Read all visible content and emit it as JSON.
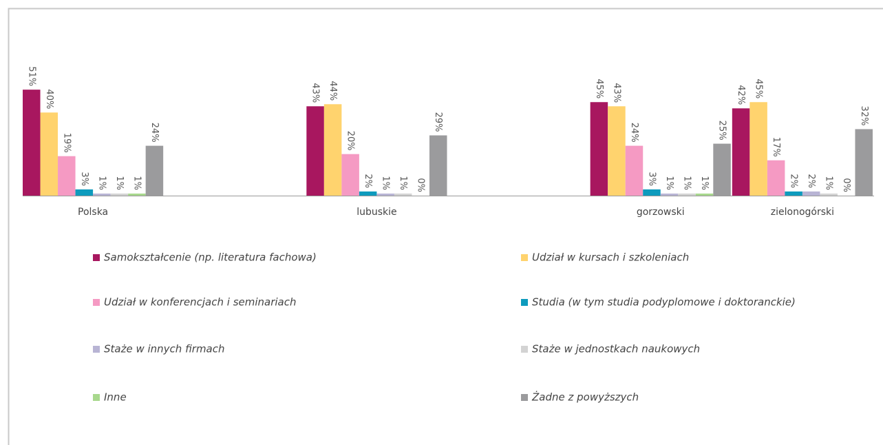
{
  "chart_data": {
    "type": "bar",
    "categories": [
      "Polska",
      null,
      "lubuskie",
      null,
      "gorzowski",
      "zielonogórski"
    ],
    "ylim": [
      0,
      60
    ],
    "series": [
      {
        "name": "Samokształcenie (np. literatura fachowa)",
        "color": "#a8175f",
        "values": [
          51,
          null,
          43,
          null,
          45,
          42
        ],
        "value_labels": [
          "51%",
          null,
          "43%",
          null,
          "45%",
          "42%"
        ]
      },
      {
        "name": "Udział w kursach i szkoleniach",
        "color": "#ffd36e",
        "values": [
          40,
          null,
          44,
          null,
          43,
          45
        ],
        "value_labels": [
          "40%",
          null,
          "44%",
          null,
          "43%",
          "45%"
        ]
      },
      {
        "name": "Udział w konferencjach i seminariach",
        "color": "#f59ac3",
        "values": [
          19,
          null,
          20,
          null,
          24,
          17
        ],
        "value_labels": [
          "19%",
          null,
          "20%",
          null,
          "24%",
          "17%"
        ]
      },
      {
        "name": "Studia (w tym studia podyplomowe i doktoranckie)",
        "color": "#0e9bbd",
        "values": [
          3,
          null,
          2,
          null,
          3,
          2
        ],
        "value_labels": [
          "3%",
          null,
          "2%",
          null,
          "3%",
          "2%"
        ]
      },
      {
        "name": "Staże w innych firmach",
        "color": "#b8b4d4",
        "values": [
          1,
          null,
          1,
          null,
          1,
          2
        ],
        "value_labels": [
          "1%",
          null,
          "1%",
          null,
          "1%",
          "2%"
        ]
      },
      {
        "name": "Staże w jednostkach naukowych",
        "color": "#d3d3d3",
        "values": [
          1,
          null,
          1,
          null,
          1,
          1
        ],
        "value_labels": [
          "1%",
          null,
          "1%",
          null,
          "1%",
          "1%"
        ]
      },
      {
        "name": "Inne",
        "color": "#a8d88d",
        "values": [
          1,
          null,
          0,
          null,
          1,
          0
        ],
        "value_labels": [
          "1%",
          null,
          "0%",
          null,
          "1%",
          "0%"
        ]
      },
      {
        "name": "Żadne z powyższych",
        "color": "#9b9b9d",
        "values": [
          24,
          null,
          29,
          null,
          25,
          32
        ],
        "value_labels": [
          "24%",
          null,
          "29%",
          null,
          "25%",
          "32%"
        ]
      }
    ]
  }
}
